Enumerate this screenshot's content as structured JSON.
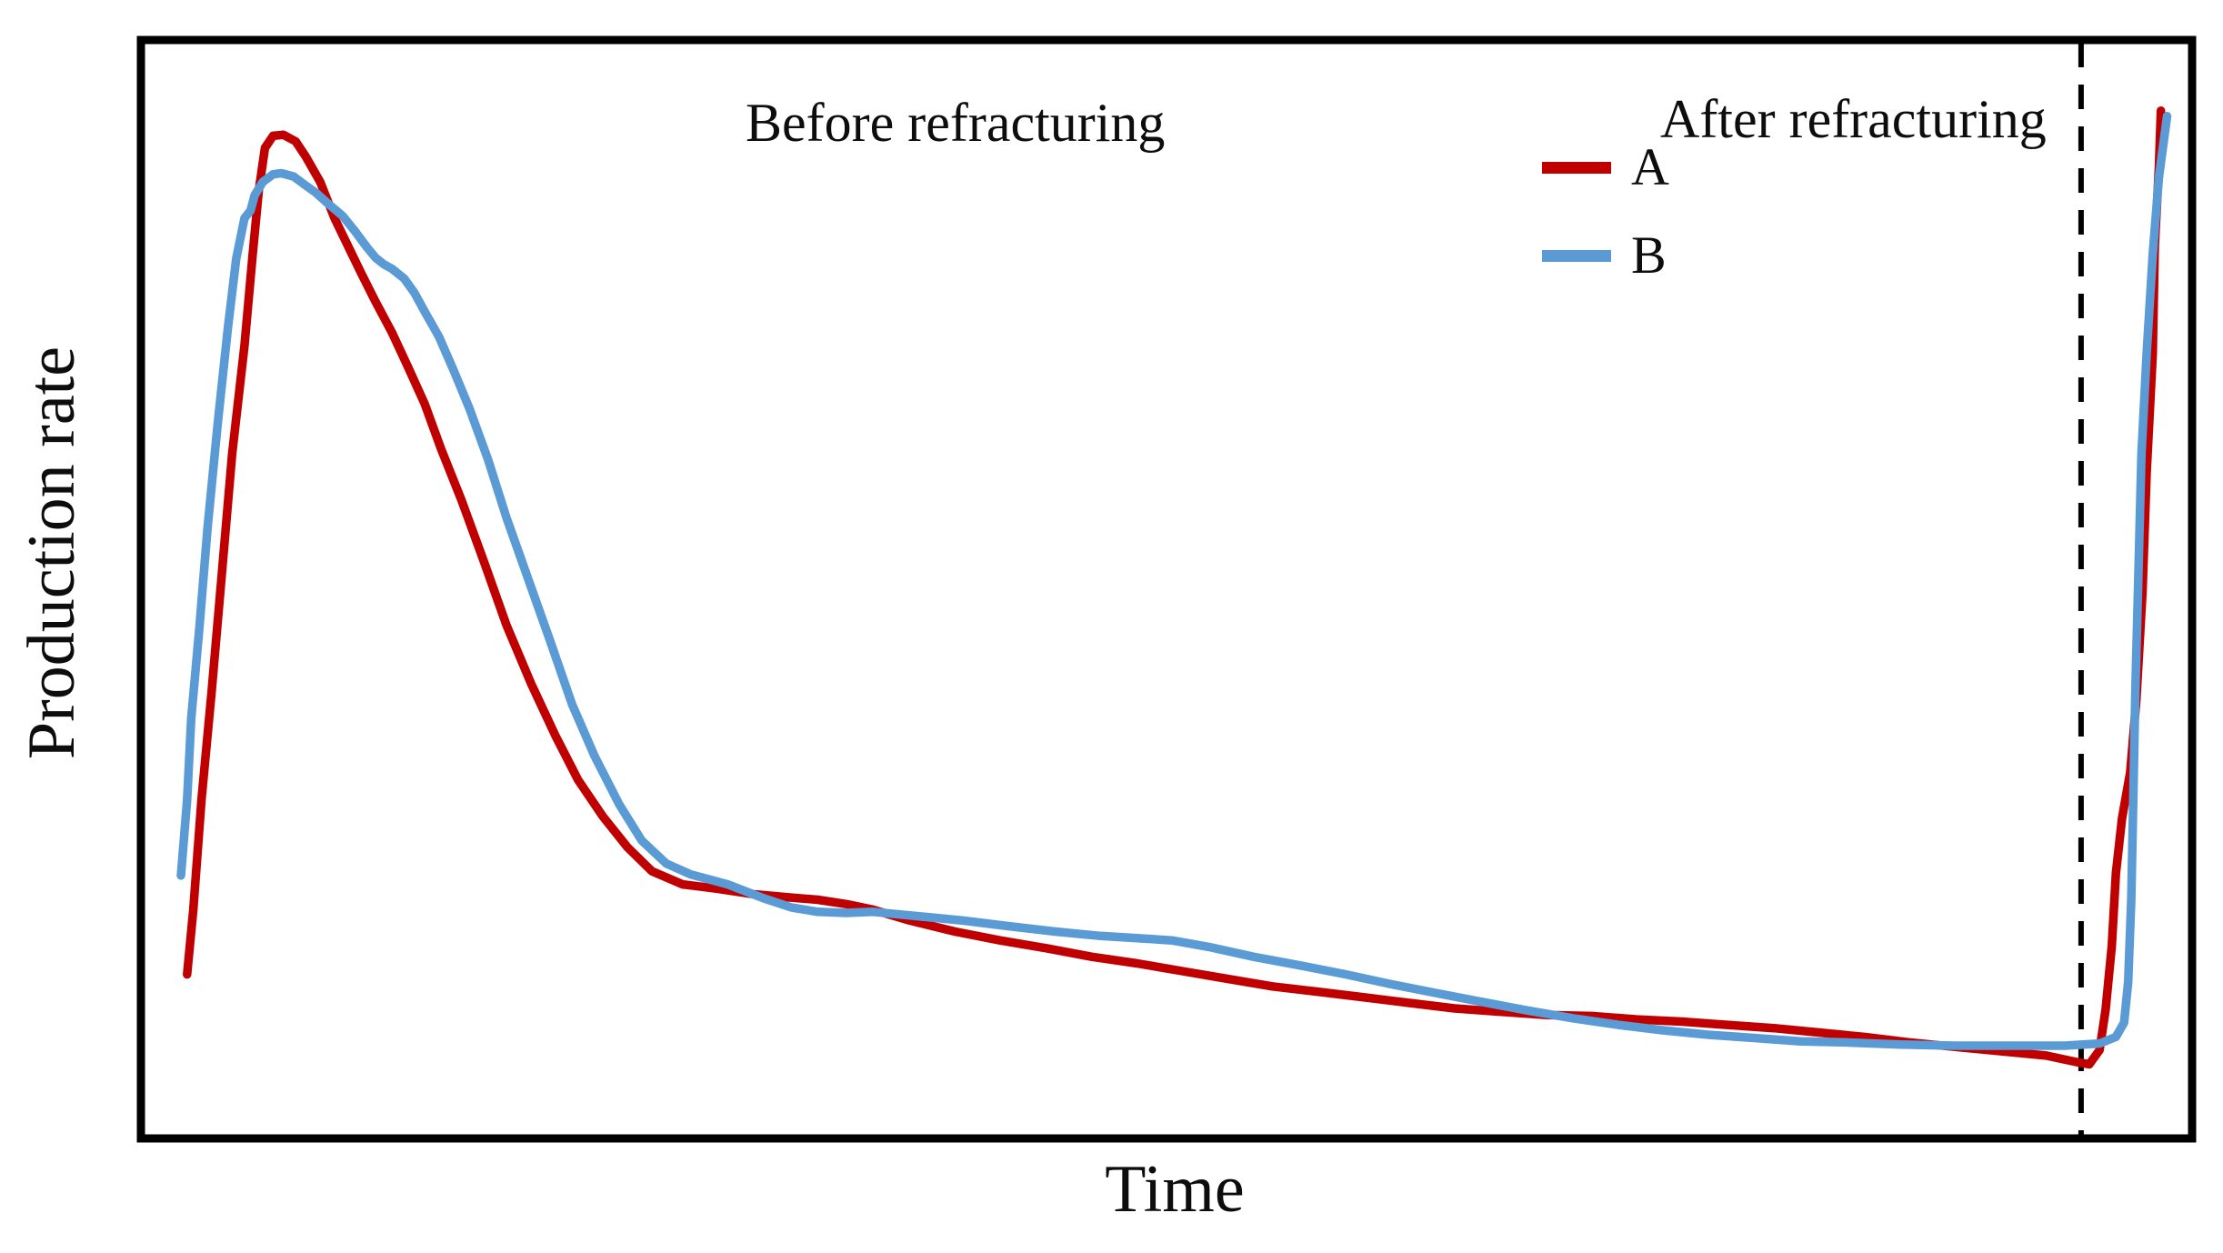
{
  "figure": {
    "background": "#ffffff",
    "border_color": "#000000",
    "text_color": "#0d0d0d"
  },
  "axes": {
    "x_label": "Time",
    "y_label": "Production rate"
  },
  "annotations": {
    "before_label": "Before refracturing",
    "after_label": "After refracturing"
  },
  "legend": {
    "items": [
      {
        "label": "A",
        "color": "#c00000"
      },
      {
        "label": "B",
        "color": "#5b9bd5"
      }
    ]
  },
  "chart_data": {
    "type": "line",
    "title": "",
    "xlabel": "Time",
    "ylabel": "Production rate",
    "xlim": [
      0,
      100
    ],
    "ylim": [
      0,
      100
    ],
    "grid": false,
    "axis_ticks": "none (qualitative sketch, unlabeled axes)",
    "legend_position": "upper-right-inside",
    "annotations": [
      {
        "text": "Before refracturing",
        "x": 41,
        "y": 95
      },
      {
        "text": "After refracturing",
        "x": 88,
        "y": 95
      }
    ],
    "refracturing_marker": {
      "type": "vertical-dashed-line",
      "color": "#000000",
      "x": 94.8
    },
    "series": [
      {
        "name": "A",
        "color": "#c00000",
        "points": [
          [
            2.3,
            14.7
          ],
          [
            2.6,
            20.6
          ],
          [
            3.0,
            30.6
          ],
          [
            3.5,
            40.5
          ],
          [
            4.0,
            51.3
          ],
          [
            4.5,
            62.1
          ],
          [
            5.1,
            72.0
          ],
          [
            5.5,
            80.3
          ],
          [
            5.8,
            86.1
          ],
          [
            6.1,
            90.0
          ],
          [
            6.5,
            91.1
          ],
          [
            7.0,
            91.2
          ],
          [
            7.6,
            90.6
          ],
          [
            8.1,
            89.2
          ],
          [
            8.8,
            86.9
          ],
          [
            9.5,
            83.6
          ],
          [
            10.2,
            80.9
          ],
          [
            10.8,
            78.6
          ],
          [
            11.5,
            76.0
          ],
          [
            12.3,
            73.2
          ],
          [
            13.1,
            70.0
          ],
          [
            13.9,
            66.7
          ],
          [
            14.7,
            62.6
          ],
          [
            15.7,
            57.9
          ],
          [
            16.8,
            52.3
          ],
          [
            17.9,
            46.5
          ],
          [
            19.1,
            41.2
          ],
          [
            20.3,
            36.4
          ],
          [
            21.4,
            32.4
          ],
          [
            22.6,
            29.1
          ],
          [
            23.8,
            26.3
          ],
          [
            25.0,
            24.1
          ],
          [
            26.5,
            22.9
          ],
          [
            28.2,
            22.5
          ],
          [
            30.0,
            22.0
          ],
          [
            31.8,
            21.7
          ],
          [
            33.1,
            21.5
          ],
          [
            34.5,
            21.1
          ],
          [
            35.8,
            20.6
          ],
          [
            37.6,
            19.6
          ],
          [
            39.8,
            18.6
          ],
          [
            42.0,
            17.8
          ],
          [
            44.2,
            17.1
          ],
          [
            46.5,
            16.3
          ],
          [
            48.7,
            15.7
          ],
          [
            50.9,
            15.0
          ],
          [
            53.1,
            14.3
          ],
          [
            55.3,
            13.6
          ],
          [
            57.6,
            13.1
          ],
          [
            59.8,
            12.6
          ],
          [
            62.0,
            12.1
          ],
          [
            64.2,
            11.6
          ],
          [
            66.4,
            11.3
          ],
          [
            68.7,
            11.0
          ],
          [
            70.9,
            10.9
          ],
          [
            73.1,
            10.6
          ],
          [
            75.3,
            10.4
          ],
          [
            77.5,
            10.1
          ],
          [
            79.8,
            9.8
          ],
          [
            82.0,
            9.4
          ],
          [
            84.2,
            9.0
          ],
          [
            86.4,
            8.5
          ],
          [
            88.6,
            8.1
          ],
          [
            90.9,
            7.7
          ],
          [
            93.1,
            7.3
          ],
          [
            94.6,
            6.7
          ],
          [
            95.2,
            6.5
          ],
          [
            95.7,
            7.8
          ],
          [
            96.0,
            11.5
          ],
          [
            96.3,
            17.3
          ],
          [
            96.5,
            23.9
          ],
          [
            96.8,
            28.9
          ],
          [
            97.2,
            33.1
          ],
          [
            97.5,
            39.7
          ],
          [
            97.8,
            49.6
          ],
          [
            98.0,
            60.4
          ],
          [
            98.3,
            71.2
          ],
          [
            98.4,
            81.1
          ],
          [
            98.6,
            88.2
          ],
          [
            98.7,
            93.4
          ]
        ]
      },
      {
        "name": "B",
        "color": "#5b9bd5",
        "points": [
          [
            2.0,
            23.7
          ],
          [
            2.3,
            30.6
          ],
          [
            2.5,
            38.0
          ],
          [
            2.9,
            46.3
          ],
          [
            3.3,
            55.4
          ],
          [
            3.8,
            65.0
          ],
          [
            4.3,
            73.7
          ],
          [
            4.7,
            79.9
          ],
          [
            5.1,
            83.6
          ],
          [
            5.4,
            84.3
          ],
          [
            5.6,
            85.7
          ],
          [
            6.0,
            86.9
          ],
          [
            6.5,
            87.6
          ],
          [
            6.9,
            87.7
          ],
          [
            7.5,
            87.4
          ],
          [
            8.0,
            86.7
          ],
          [
            8.6,
            85.9
          ],
          [
            9.2,
            84.9
          ],
          [
            9.9,
            83.8
          ],
          [
            10.5,
            82.4
          ],
          [
            11.1,
            80.9
          ],
          [
            11.5,
            80.0
          ],
          [
            11.9,
            79.4
          ],
          [
            12.3,
            79.0
          ],
          [
            12.9,
            78.1
          ],
          [
            13.4,
            76.8
          ],
          [
            13.9,
            75.1
          ],
          [
            14.6,
            72.8
          ],
          [
            15.3,
            69.8
          ],
          [
            16.1,
            66.2
          ],
          [
            17.0,
            61.6
          ],
          [
            17.9,
            56.3
          ],
          [
            19.0,
            50.5
          ],
          [
            20.1,
            44.7
          ],
          [
            21.1,
            39.3
          ],
          [
            22.2,
            34.6
          ],
          [
            23.4,
            30.2
          ],
          [
            24.5,
            26.9
          ],
          [
            25.7,
            24.8
          ],
          [
            26.9,
            23.8
          ],
          [
            28.7,
            22.9
          ],
          [
            30.5,
            21.6
          ],
          [
            31.8,
            20.8
          ],
          [
            33.1,
            20.4
          ],
          [
            34.5,
            20.3
          ],
          [
            35.8,
            20.4
          ],
          [
            38.0,
            20.0
          ],
          [
            40.2,
            19.6
          ],
          [
            42.4,
            19.1
          ],
          [
            44.7,
            18.6
          ],
          [
            46.9,
            18.2
          ],
          [
            48.7,
            18.0
          ],
          [
            50.4,
            17.8
          ],
          [
            52.2,
            17.2
          ],
          [
            54.4,
            16.3
          ],
          [
            56.7,
            15.5
          ],
          [
            58.9,
            14.7
          ],
          [
            61.1,
            13.8
          ],
          [
            63.3,
            13.0
          ],
          [
            65.5,
            12.2
          ],
          [
            67.8,
            11.4
          ],
          [
            70.0,
            10.7
          ],
          [
            72.2,
            10.1
          ],
          [
            74.4,
            9.6
          ],
          [
            76.6,
            9.2
          ],
          [
            78.9,
            8.9
          ],
          [
            81.1,
            8.6
          ],
          [
            83.3,
            8.5
          ],
          [
            86.0,
            8.3
          ],
          [
            88.6,
            8.2
          ],
          [
            91.3,
            8.2
          ],
          [
            94.0,
            8.2
          ],
          [
            95.7,
            8.4
          ],
          [
            96.5,
            9.0
          ],
          [
            96.9,
            10.3
          ],
          [
            97.1,
            14.0
          ],
          [
            97.25,
            21.5
          ],
          [
            97.35,
            30.6
          ],
          [
            97.45,
            40.5
          ],
          [
            97.6,
            51.3
          ],
          [
            97.75,
            62.1
          ],
          [
            98.0,
            71.2
          ],
          [
            98.3,
            80.3
          ],
          [
            98.6,
            87.3
          ],
          [
            99.0,
            92.9
          ]
        ]
      }
    ]
  }
}
